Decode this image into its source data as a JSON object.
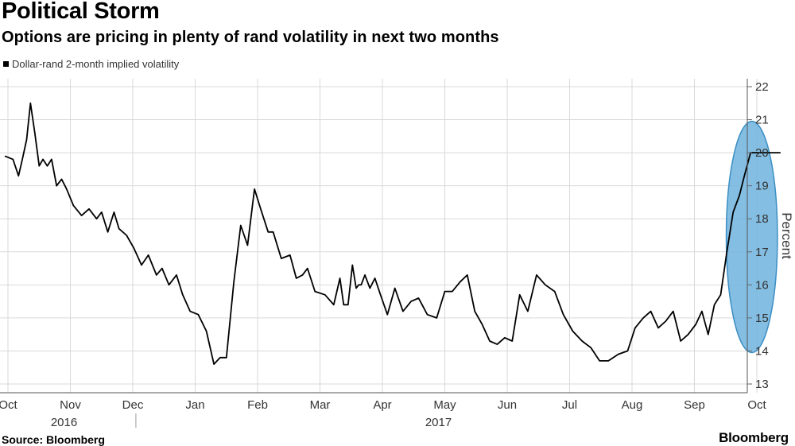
{
  "header": {
    "title": "Political Storm",
    "subtitle": "Options are pricing in plenty of rand volatility in next two months"
  },
  "legend": {
    "label": "Dollar-rand 2-month implied volatility"
  },
  "footer": {
    "source": "Source: Bloomberg",
    "brand": "Bloomberg"
  },
  "colors": {
    "line": "#000000",
    "highlight_fill": "#6fb3dd",
    "highlight_stroke": "#3b8ec4",
    "grid": "#d9d9d9"
  },
  "chart_data": {
    "type": "line",
    "title": "Political Storm",
    "subtitle": "Options are pricing in plenty of rand volatility in next two months",
    "xlabel": "",
    "ylabel": "Percent",
    "ylim": [
      13,
      22
    ],
    "yticks": [
      13,
      14,
      15,
      16,
      17,
      18,
      19,
      20,
      21,
      22
    ],
    "xlim": [
      0,
      12.4
    ],
    "xticks": [
      {
        "label": "Oct",
        "x": 0
      },
      {
        "label": "Nov",
        "x": 1
      },
      {
        "label": "Dec",
        "x": 2
      },
      {
        "label": "Jan",
        "x": 3
      },
      {
        "label": "Feb",
        "x": 4
      },
      {
        "label": "Mar",
        "x": 5
      },
      {
        "label": "Apr",
        "x": 6
      },
      {
        "label": "May",
        "x": 7
      },
      {
        "label": "Jun",
        "x": 8
      },
      {
        "label": "Jul",
        "x": 9
      },
      {
        "label": "Aug",
        "x": 10
      },
      {
        "label": "Sep",
        "x": 11
      },
      {
        "label": "Oct",
        "x": 12
      }
    ],
    "year_labels": [
      {
        "label": "2016",
        "x": 1
      },
      {
        "label": "2017",
        "x": 7
      }
    ],
    "series": [
      {
        "name": "Dollar-rand 2-month implied volatility",
        "x": [
          -0.05,
          0.08,
          0.17,
          0.23,
          0.3,
          0.36,
          0.43,
          0.5,
          0.56,
          0.63,
          0.7,
          0.78,
          0.86,
          0.94,
          1.05,
          1.18,
          1.3,
          1.42,
          1.5,
          1.6,
          1.7,
          1.78,
          1.9,
          2.02,
          2.14,
          2.25,
          2.38,
          2.47,
          2.58,
          2.7,
          2.8,
          2.92,
          3.05,
          3.18,
          3.3,
          3.4,
          3.5,
          3.62,
          3.73,
          3.84,
          3.95,
          4.05,
          4.17,
          4.25,
          4.38,
          4.52,
          4.62,
          4.72,
          4.8,
          4.92,
          5.08,
          5.22,
          5.32,
          5.38,
          5.45,
          5.52,
          5.58,
          5.62,
          5.66,
          5.72,
          5.8,
          5.88,
          5.97,
          6.08,
          6.2,
          6.33,
          6.46,
          6.58,
          6.72,
          6.87,
          7.0,
          7.12,
          7.25,
          7.36,
          7.48,
          7.6,
          7.72,
          7.84,
          7.96,
          8.08,
          8.2,
          8.33,
          8.47,
          8.61,
          8.76,
          8.9,
          9.05,
          9.2,
          9.34,
          9.48,
          9.62,
          9.78,
          9.93,
          10.05,
          10.18,
          10.3,
          10.42,
          10.54,
          10.66,
          10.78,
          10.9,
          11.02,
          11.12,
          11.22,
          11.32,
          11.42,
          11.52,
          11.62,
          11.72,
          11.8,
          11.9,
          12.0,
          12.08,
          12.16,
          12.24,
          12.3,
          12.38
        ],
        "values": [
          19.9,
          19.8,
          19.3,
          19.8,
          20.4,
          21.5,
          20.6,
          19.6,
          19.8,
          19.6,
          19.8,
          19.0,
          19.2,
          18.9,
          18.4,
          18.1,
          18.3,
          18.0,
          18.2,
          17.6,
          18.2,
          17.7,
          17.5,
          17.1,
          16.6,
          16.9,
          16.3,
          16.5,
          16.0,
          16.3,
          15.7,
          15.2,
          15.1,
          14.6,
          13.6,
          13.8,
          13.8,
          16.1,
          17.8,
          17.2,
          18.9,
          18.3,
          17.6,
          17.6,
          16.8,
          16.9,
          16.2,
          16.3,
          16.5,
          15.8,
          15.7,
          15.4,
          16.2,
          15.4,
          15.4,
          16.6,
          15.9,
          16.0,
          16.0,
          16.3,
          15.9,
          16.2,
          15.7,
          15.1,
          15.9,
          15.2,
          15.5,
          15.6,
          15.1,
          15.0,
          15.8,
          15.8,
          16.1,
          16.3,
          15.2,
          14.8,
          14.3,
          14.2,
          14.4,
          14.3,
          15.7,
          15.2,
          16.3,
          16.0,
          15.8,
          15.1,
          14.6,
          14.3,
          14.1,
          13.7,
          13.7,
          13.9,
          14.0,
          14.7,
          15.0,
          15.2,
          14.7,
          14.9,
          15.2,
          14.3,
          14.5,
          14.8,
          15.2,
          14.5,
          15.4,
          15.7,
          17.0,
          18.2,
          18.7,
          19.3,
          20.0,
          20.0,
          20.0,
          20.0,
          20.0,
          20.0,
          20.0
        ],
        "color": "#000000"
      }
    ],
    "annotations": [
      {
        "type": "ellipse",
        "label": "highlight",
        "x_center": 11.92,
        "y_center": 17.45,
        "x_radius": 0.41,
        "y_radius": 3.5
      }
    ],
    "grid": true,
    "legend_position": "top-left"
  }
}
